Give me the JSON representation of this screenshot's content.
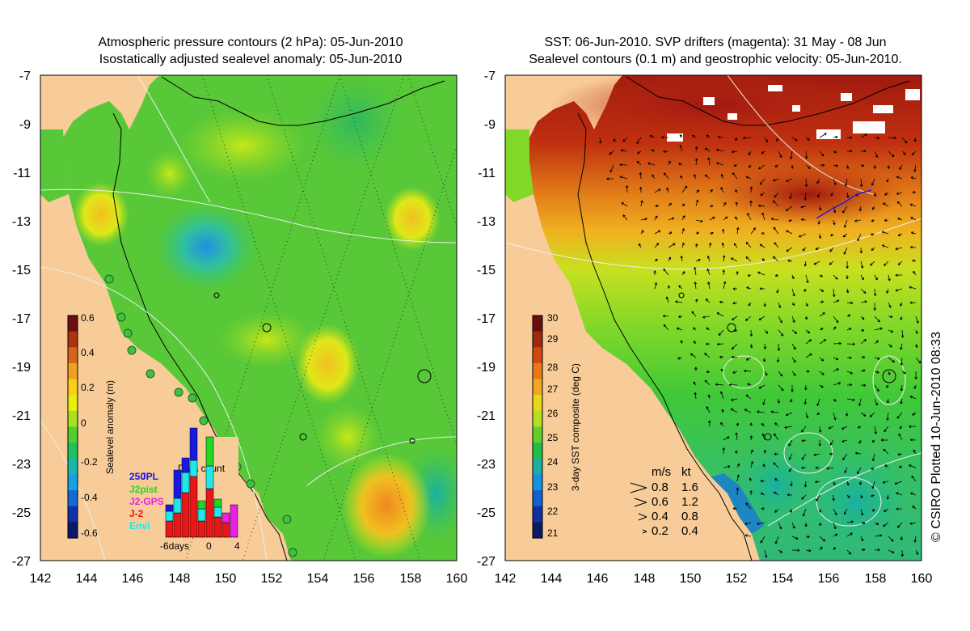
{
  "left_panel": {
    "title_line1": "Atmospheric pressure contours (2 hPa): 05-Jun-2010",
    "title_line2": "Isostatically adjusted sealevel anomaly: 05-Jun-2010",
    "x_ticks": [
      "142",
      "144",
      "146",
      "148",
      "150",
      "152",
      "154",
      "156",
      "158",
      "160"
    ],
    "y_ticks": [
      "-7",
      "-9",
      "-11",
      "-13",
      "-15",
      "-17",
      "-19",
      "-21",
      "-23",
      "-25",
      "-27"
    ],
    "colorbar": {
      "label": "Sealevel anomaly (m)",
      "ticks": [
        "0.6",
        "0.4",
        "0.2",
        "0",
        "-0.2",
        "-0.4",
        "-0.6"
      ],
      "colors": [
        "#6a0f0f",
        "#a83410",
        "#d8641c",
        "#f0a020",
        "#f8d018",
        "#e8f010",
        "#a8e020",
        "#50d030",
        "#20c060",
        "#18b8a8",
        "#18a0e0",
        "#1468d8",
        "#1030a8",
        "#0a1868"
      ]
    },
    "data_count": {
      "title": "Data count",
      "max_label": "250",
      "x_ticks": [
        "-6days",
        "0",
        "4"
      ],
      "legend": [
        {
          "label": "JPL",
          "color": "#1818e0"
        },
        {
          "label": "J2pist",
          "color": "#20d820"
        },
        {
          "label": "J2-GPS",
          "color": "#e820e8"
        },
        {
          "label": "J-2",
          "color": "#e81818"
        },
        {
          "label": "Envi",
          "color": "#20e8e8"
        }
      ]
    }
  },
  "right_panel": {
    "title_line1": "SST: 06-Jun-2010. SVP drifters (magenta): 31 May - 08 Jun",
    "title_line2": "Sealevel contours (0.1 m) and geostrophic velocity: 05-Jun-2010.",
    "x_ticks": [
      "142",
      "144",
      "146",
      "148",
      "150",
      "152",
      "154",
      "156",
      "158",
      "160"
    ],
    "y_ticks": [
      "-7",
      "-9",
      "-11",
      "-13",
      "-15",
      "-17",
      "-19",
      "-21",
      "-23",
      "-25",
      "-27"
    ],
    "colorbar": {
      "label": "3-day SST composite (deg C)",
      "ticks": [
        "30",
        "29",
        "28",
        "27",
        "26",
        "25",
        "24",
        "23",
        "22",
        "21"
      ],
      "colors": [
        "#6a0f0f",
        "#a02810",
        "#d04810",
        "#e87818",
        "#f0a820",
        "#e8d818",
        "#b0e020",
        "#60d028",
        "#20c048",
        "#18b0a0",
        "#1890e0",
        "#1460d0",
        "#1030a0",
        "#0a1868"
      ]
    },
    "velocity_legend": {
      "header_ms": "m/s",
      "header_kt": "kt",
      "rows": [
        {
          "ms": "0.8",
          "kt": "1.6"
        },
        {
          "ms": "0.6",
          "kt": "1.2"
        },
        {
          "ms": "0.4",
          "kt": "0.8"
        },
        {
          "ms": "0.2",
          "kt": "0.4"
        }
      ]
    }
  },
  "credit": "© CSIRO Plotted 10-Jun-2010 08:33",
  "colors": {
    "land": "#f8cc98",
    "ocean_green": "#6ad03a",
    "warm_sst": "#b02810"
  }
}
